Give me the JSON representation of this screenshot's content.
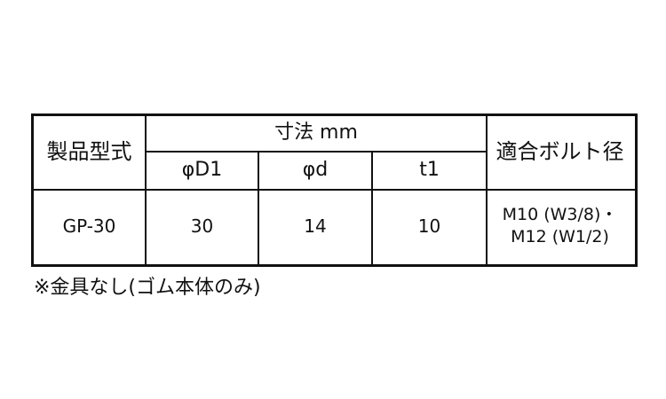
{
  "table": {
    "headers": {
      "model": "製品型式",
      "dimensions": "寸法 mm",
      "d1": "φD1",
      "d": "φd",
      "t1": "t1",
      "bolt": "適合ボルト径"
    },
    "rows": [
      {
        "model": "GP-30",
        "d1": "30",
        "d": "14",
        "t1": "10",
        "bolt_line1": "M10 (W3/8)・",
        "bolt_line2": "M12 (W1/2)"
      }
    ]
  },
  "note": "※金具なし(ゴム本体のみ)"
}
